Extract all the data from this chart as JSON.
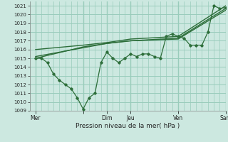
{
  "xlabel": "Pression niveau de la mer( hPa )",
  "ylim": [
    1009,
    1021.5
  ],
  "yticks": [
    1009,
    1010,
    1011,
    1012,
    1013,
    1014,
    1015,
    1016,
    1017,
    1018,
    1019,
    1020,
    1021
  ],
  "bg_color": "#cce8e0",
  "grid_color": "#99ccbb",
  "line_color": "#2d6e3a",
  "xlim": [
    0,
    33
  ],
  "vlines_x": [
    1,
    9,
    13,
    17,
    25,
    33
  ],
  "xtick_labels": [
    "Mer",
    "",
    "Dim",
    "Jeu",
    "Ven",
    "Sam"
  ],
  "xtick_positions": [
    1,
    9,
    13,
    17,
    25,
    33
  ],
  "line_jagged_x": [
    1,
    2,
    3,
    4,
    5,
    6,
    7,
    8,
    9,
    10,
    11,
    12,
    13,
    14,
    15,
    16,
    17,
    18,
    19,
    20,
    21,
    22,
    23,
    24,
    25,
    26,
    27,
    28,
    29,
    30,
    31,
    32,
    33
  ],
  "line_jagged_y": [
    1015.0,
    1015.0,
    1014.5,
    1013.2,
    1012.5,
    1012.0,
    1011.5,
    1010.5,
    1009.2,
    1010.5,
    1011.0,
    1014.5,
    1015.7,
    1015.0,
    1014.5,
    1015.0,
    1015.5,
    1015.2,
    1015.5,
    1015.5,
    1015.2,
    1015.0,
    1017.5,
    1017.8,
    1017.5,
    1017.3,
    1016.5,
    1016.5,
    1016.5,
    1018.0,
    1021.0,
    1020.7,
    1020.8
  ],
  "line_upper_x": [
    1,
    9,
    13,
    17,
    25,
    33
  ],
  "line_upper_y": [
    1016.0,
    1016.5,
    1016.8,
    1017.2,
    1017.5,
    1021.0
  ],
  "line_mid_x": [
    1,
    9,
    13,
    17,
    25,
    33
  ],
  "line_mid_y": [
    1015.2,
    1016.2,
    1016.7,
    1017.0,
    1017.3,
    1020.7
  ],
  "line_lower_x": [
    1,
    9,
    13,
    17,
    25,
    33
  ],
  "line_lower_y": [
    1015.0,
    1016.3,
    1016.7,
    1017.0,
    1017.2,
    1020.5
  ]
}
